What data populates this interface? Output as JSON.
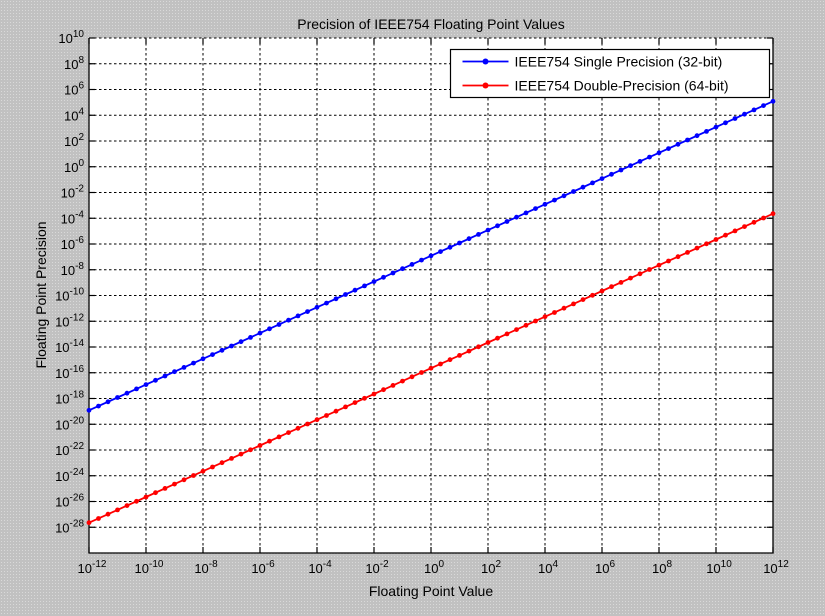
{
  "figure": {
    "background_color": "#c8c8c8",
    "plot_background_color": "#ffffff",
    "grid_color": "#000000",
    "axis_color": "#000000",
    "text_color": "#000000"
  },
  "chart_data": {
    "type": "line",
    "title": "Precision of IEEE754 Floating Point Values",
    "xlabel": "Floating Point Value",
    "ylabel": "Floating Point Precision",
    "x_scale": "log10",
    "y_scale": "log10",
    "xlim_log10": [
      -12,
      12
    ],
    "ylim_log10": [
      -30,
      10
    ],
    "x_tick_exponents": [
      -12,
      -10,
      -8,
      -6,
      -4,
      -2,
      0,
      2,
      4,
      6,
      8,
      10,
      12
    ],
    "y_tick_exponents": [
      10,
      8,
      6,
      4,
      2,
      0,
      -2,
      -4,
      -6,
      -8,
      -10,
      -12,
      -14,
      -16,
      -18,
      -20,
      -22,
      -24,
      -26,
      -28
    ],
    "grid_style": "dotted-black",
    "legend": {
      "position": "top-right-inside",
      "background": "#ffffff",
      "border_color": "#000000"
    },
    "series": [
      {
        "name": "IEEE754 Single Precision (32-bit)",
        "color": "#0000ff",
        "marker": "dot",
        "markers_per_decade": 3,
        "x_log10": [
          -12,
          -11,
          -10,
          -9,
          -8,
          -7,
          -6,
          -5,
          -4,
          -3,
          -2,
          -1,
          0,
          1,
          2,
          3,
          4,
          5,
          6,
          7,
          8,
          9,
          10,
          11,
          12
        ],
        "y_log10": [
          -18.92,
          -17.92,
          -16.92,
          -15.92,
          -14.92,
          -13.92,
          -12.92,
          -11.92,
          -10.92,
          -9.92,
          -8.92,
          -7.92,
          -6.92,
          -5.92,
          -4.92,
          -3.92,
          -2.92,
          -1.92,
          -0.92,
          0.08,
          1.08,
          2.08,
          3.08,
          4.08,
          5.08
        ]
      },
      {
        "name": "IEEE754 Double-Precision (64-bit)",
        "color": "#ff0000",
        "marker": "dot",
        "markers_per_decade": 3,
        "x_log10": [
          -12,
          -11,
          -10,
          -9,
          -8,
          -7,
          -6,
          -5,
          -4,
          -3,
          -2,
          -1,
          0,
          1,
          2,
          3,
          4,
          5,
          6,
          7,
          8,
          9,
          10,
          11,
          12
        ],
        "y_log10": [
          -27.65,
          -26.65,
          -25.65,
          -24.65,
          -23.65,
          -22.65,
          -21.65,
          -20.65,
          -19.65,
          -18.65,
          -17.65,
          -16.65,
          -15.65,
          -14.65,
          -13.65,
          -12.65,
          -11.65,
          -10.65,
          -9.65,
          -8.65,
          -7.65,
          -6.65,
          -5.65,
          -4.65,
          -3.65
        ]
      }
    ]
  }
}
